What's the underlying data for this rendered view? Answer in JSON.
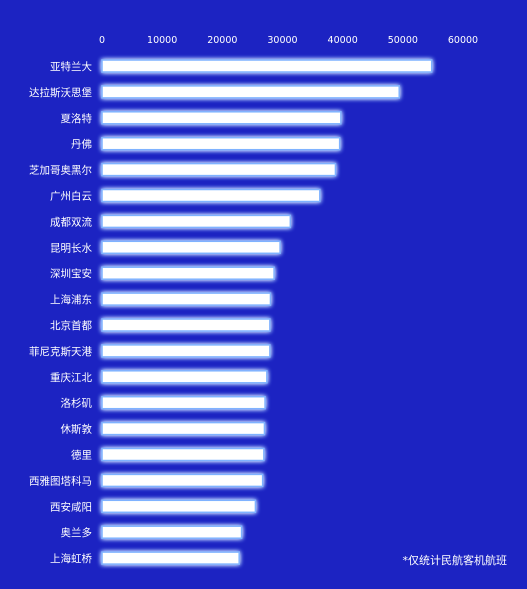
{
  "chart_data": {
    "type": "bar",
    "orientation": "horizontal",
    "title": "",
    "xlabel": "",
    "ylabel": "",
    "xlim": [
      0,
      60000
    ],
    "x_ticks": [
      0,
      10000,
      20000,
      30000,
      40000,
      50000,
      60000
    ],
    "x_tick_labels": [
      "0",
      "10000",
      "20000",
      "30000",
      "40000",
      "50000",
      "60000"
    ],
    "axis_position": "top",
    "grid": false,
    "legend": "none",
    "categories": [
      "亚特兰大",
      "达拉斯沃思堡",
      "夏洛特",
      "丹佛",
      "芝加哥奥黑尔",
      "广州白云",
      "成都双流",
      "昆明长水",
      "深圳宝安",
      "上海浦东",
      "北京首都",
      "菲尼克斯天港",
      "重庆江北",
      "洛杉矶",
      "休斯敦",
      "德里",
      "西雅图塔科马",
      "西安咸阳",
      "奥兰多",
      "上海虹桥"
    ],
    "values": [
      54800,
      49400,
      39700,
      39500,
      38800,
      36200,
      31300,
      29600,
      28600,
      28000,
      27900,
      27900,
      27400,
      27100,
      27000,
      26900,
      26700,
      25500,
      23200,
      22800
    ]
  },
  "colors": {
    "background": "#1c23c2",
    "bar_fill": "#ffffff",
    "bar_glow": "#7fb2ff",
    "text": "#ffffff"
  },
  "footnote": "*仅统计民航客机航班"
}
